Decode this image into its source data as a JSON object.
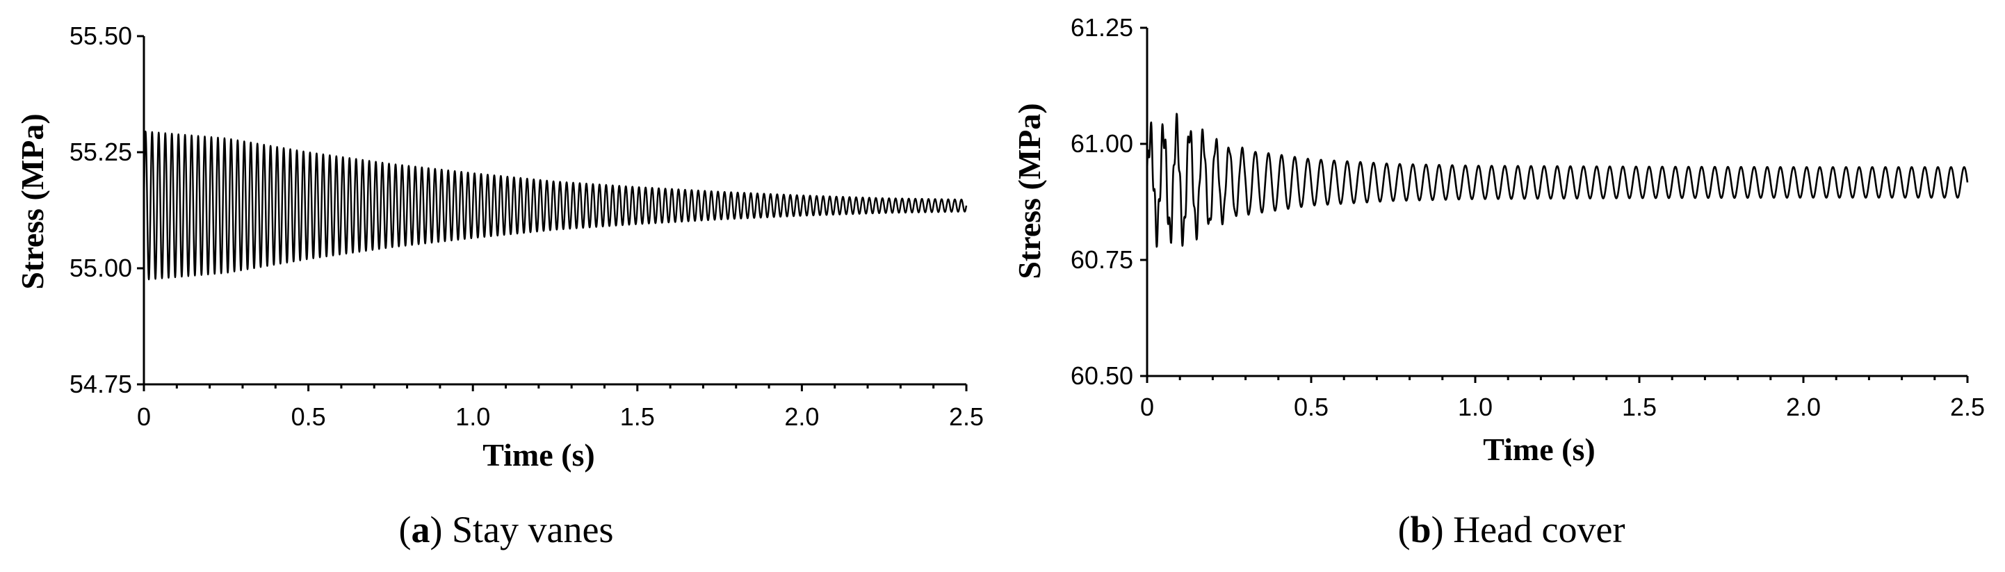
{
  "chart_data": [
    {
      "id": "a",
      "type": "line",
      "xlabel": "Time (s)",
      "ylabel": "Stress (MPa)",
      "caption_letter": "a",
      "caption_text": "Stay vanes",
      "xlim": [
        0,
        2.5
      ],
      "ylim": [
        54.75,
        55.5
      ],
      "xticks": [
        0,
        0.5,
        1.0,
        1.5,
        2.0,
        2.5
      ],
      "xtick_labels": [
        "0",
        "0.5",
        "1.0",
        "1.5",
        "2.0",
        "2.5"
      ],
      "yticks": [
        54.75,
        55.0,
        55.25,
        55.5
      ],
      "ytick_labels": [
        "54.75",
        "55.00",
        "55.25",
        "55.50"
      ],
      "series": [
        {
          "signal": {
            "mean": 55.135,
            "frequency_hz": 50,
            "envelope_t": [
              0,
              0.25,
              0.5,
              0.75,
              1.0,
              1.25,
              1.5,
              1.75,
              2.0,
              2.25,
              2.5
            ],
            "envelope_amp": [
              0.16,
              0.145,
              0.115,
              0.09,
              0.07,
              0.052,
              0.04,
              0.03,
              0.022,
              0.016,
              0.013
            ]
          }
        }
      ],
      "grid": false
    },
    {
      "id": "b",
      "type": "line",
      "xlabel": "Time (s)",
      "ylabel": "Stress (MPa)",
      "caption_letter": "b",
      "caption_text": "Head cover",
      "xlim": [
        0,
        2.5
      ],
      "ylim": [
        60.5,
        61.25
      ],
      "xticks": [
        0,
        0.5,
        1.0,
        1.5,
        2.0,
        2.5
      ],
      "xtick_labels": [
        "0",
        "0.5",
        "1.0",
        "1.5",
        "2.0",
        "2.5"
      ],
      "yticks": [
        60.5,
        60.75,
        61.0,
        61.25
      ],
      "ytick_labels": [
        "60.50",
        "60.75",
        "61.00",
        "61.25"
      ],
      "series": [
        {
          "signal": {
            "mean": 60.917,
            "frequency_hz": 25,
            "envelope_t": [
              0,
              0.1,
              0.25,
              0.5,
              0.75,
              1.0,
              1.5,
              2.0,
              2.5
            ],
            "envelope_amp": [
              0.1,
              0.12,
              0.075,
              0.05,
              0.04,
              0.036,
              0.034,
              0.033,
              0.033
            ]
          }
        }
      ],
      "grid": false
    }
  ]
}
